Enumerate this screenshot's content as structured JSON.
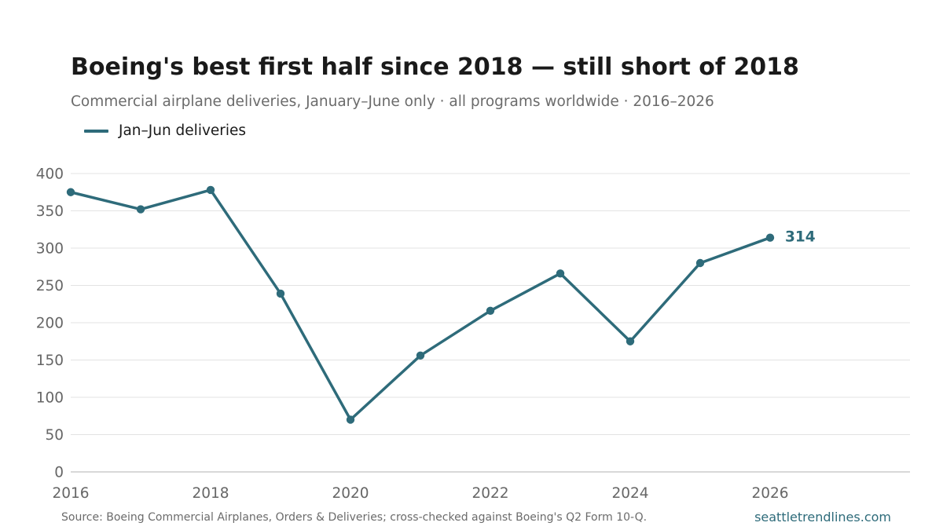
{
  "header": {
    "title": "Boeing's best first half since 2018 — still short of 2018",
    "subtitle": "Commercial airplane deliveries, January–June only · all programs worldwide · 2016–2026"
  },
  "legend": {
    "label": "Jan–Jun deliveries",
    "placement": "top-left"
  },
  "footer": {
    "source": "Source: Boeing Commercial Airplanes, Orders & Deliveries; cross-checked against Boeing's Q2 Form 10-Q.",
    "site": "seattletrendlines.com"
  },
  "colors": {
    "series": "#2e6b7a",
    "grid": "#e3e3e3",
    "axis": "#cccccc",
    "tick_text": "#666666"
  },
  "chart_data": {
    "type": "line",
    "title": "Boeing's best first half since 2018 — still short of 2018",
    "subtitle": "Commercial airplane deliveries, January–June only · all programs worldwide · 2016–2026",
    "xlabel": "",
    "ylabel": "",
    "x": [
      2016,
      2017,
      2018,
      2019,
      2020,
      2021,
      2022,
      2023,
      2024,
      2025,
      2026
    ],
    "series": [
      {
        "name": "Jan–Jun deliveries",
        "values": [
          375,
          352,
          378,
          239,
          70,
          156,
          216,
          266,
          175,
          280,
          314
        ]
      }
    ],
    "xlim": [
      2016,
      2028
    ],
    "ylim": [
      0,
      400
    ],
    "xticks": [
      "2016",
      "2018",
      "2020",
      "2022",
      "2024",
      "2026"
    ],
    "yticks": [
      "0",
      "50",
      "100",
      "150",
      "200",
      "250",
      "300",
      "350",
      "400"
    ],
    "annotations": [
      {
        "x": 2026,
        "text": "314"
      }
    ],
    "grid": "horizontal",
    "legend_position": "top-left"
  }
}
